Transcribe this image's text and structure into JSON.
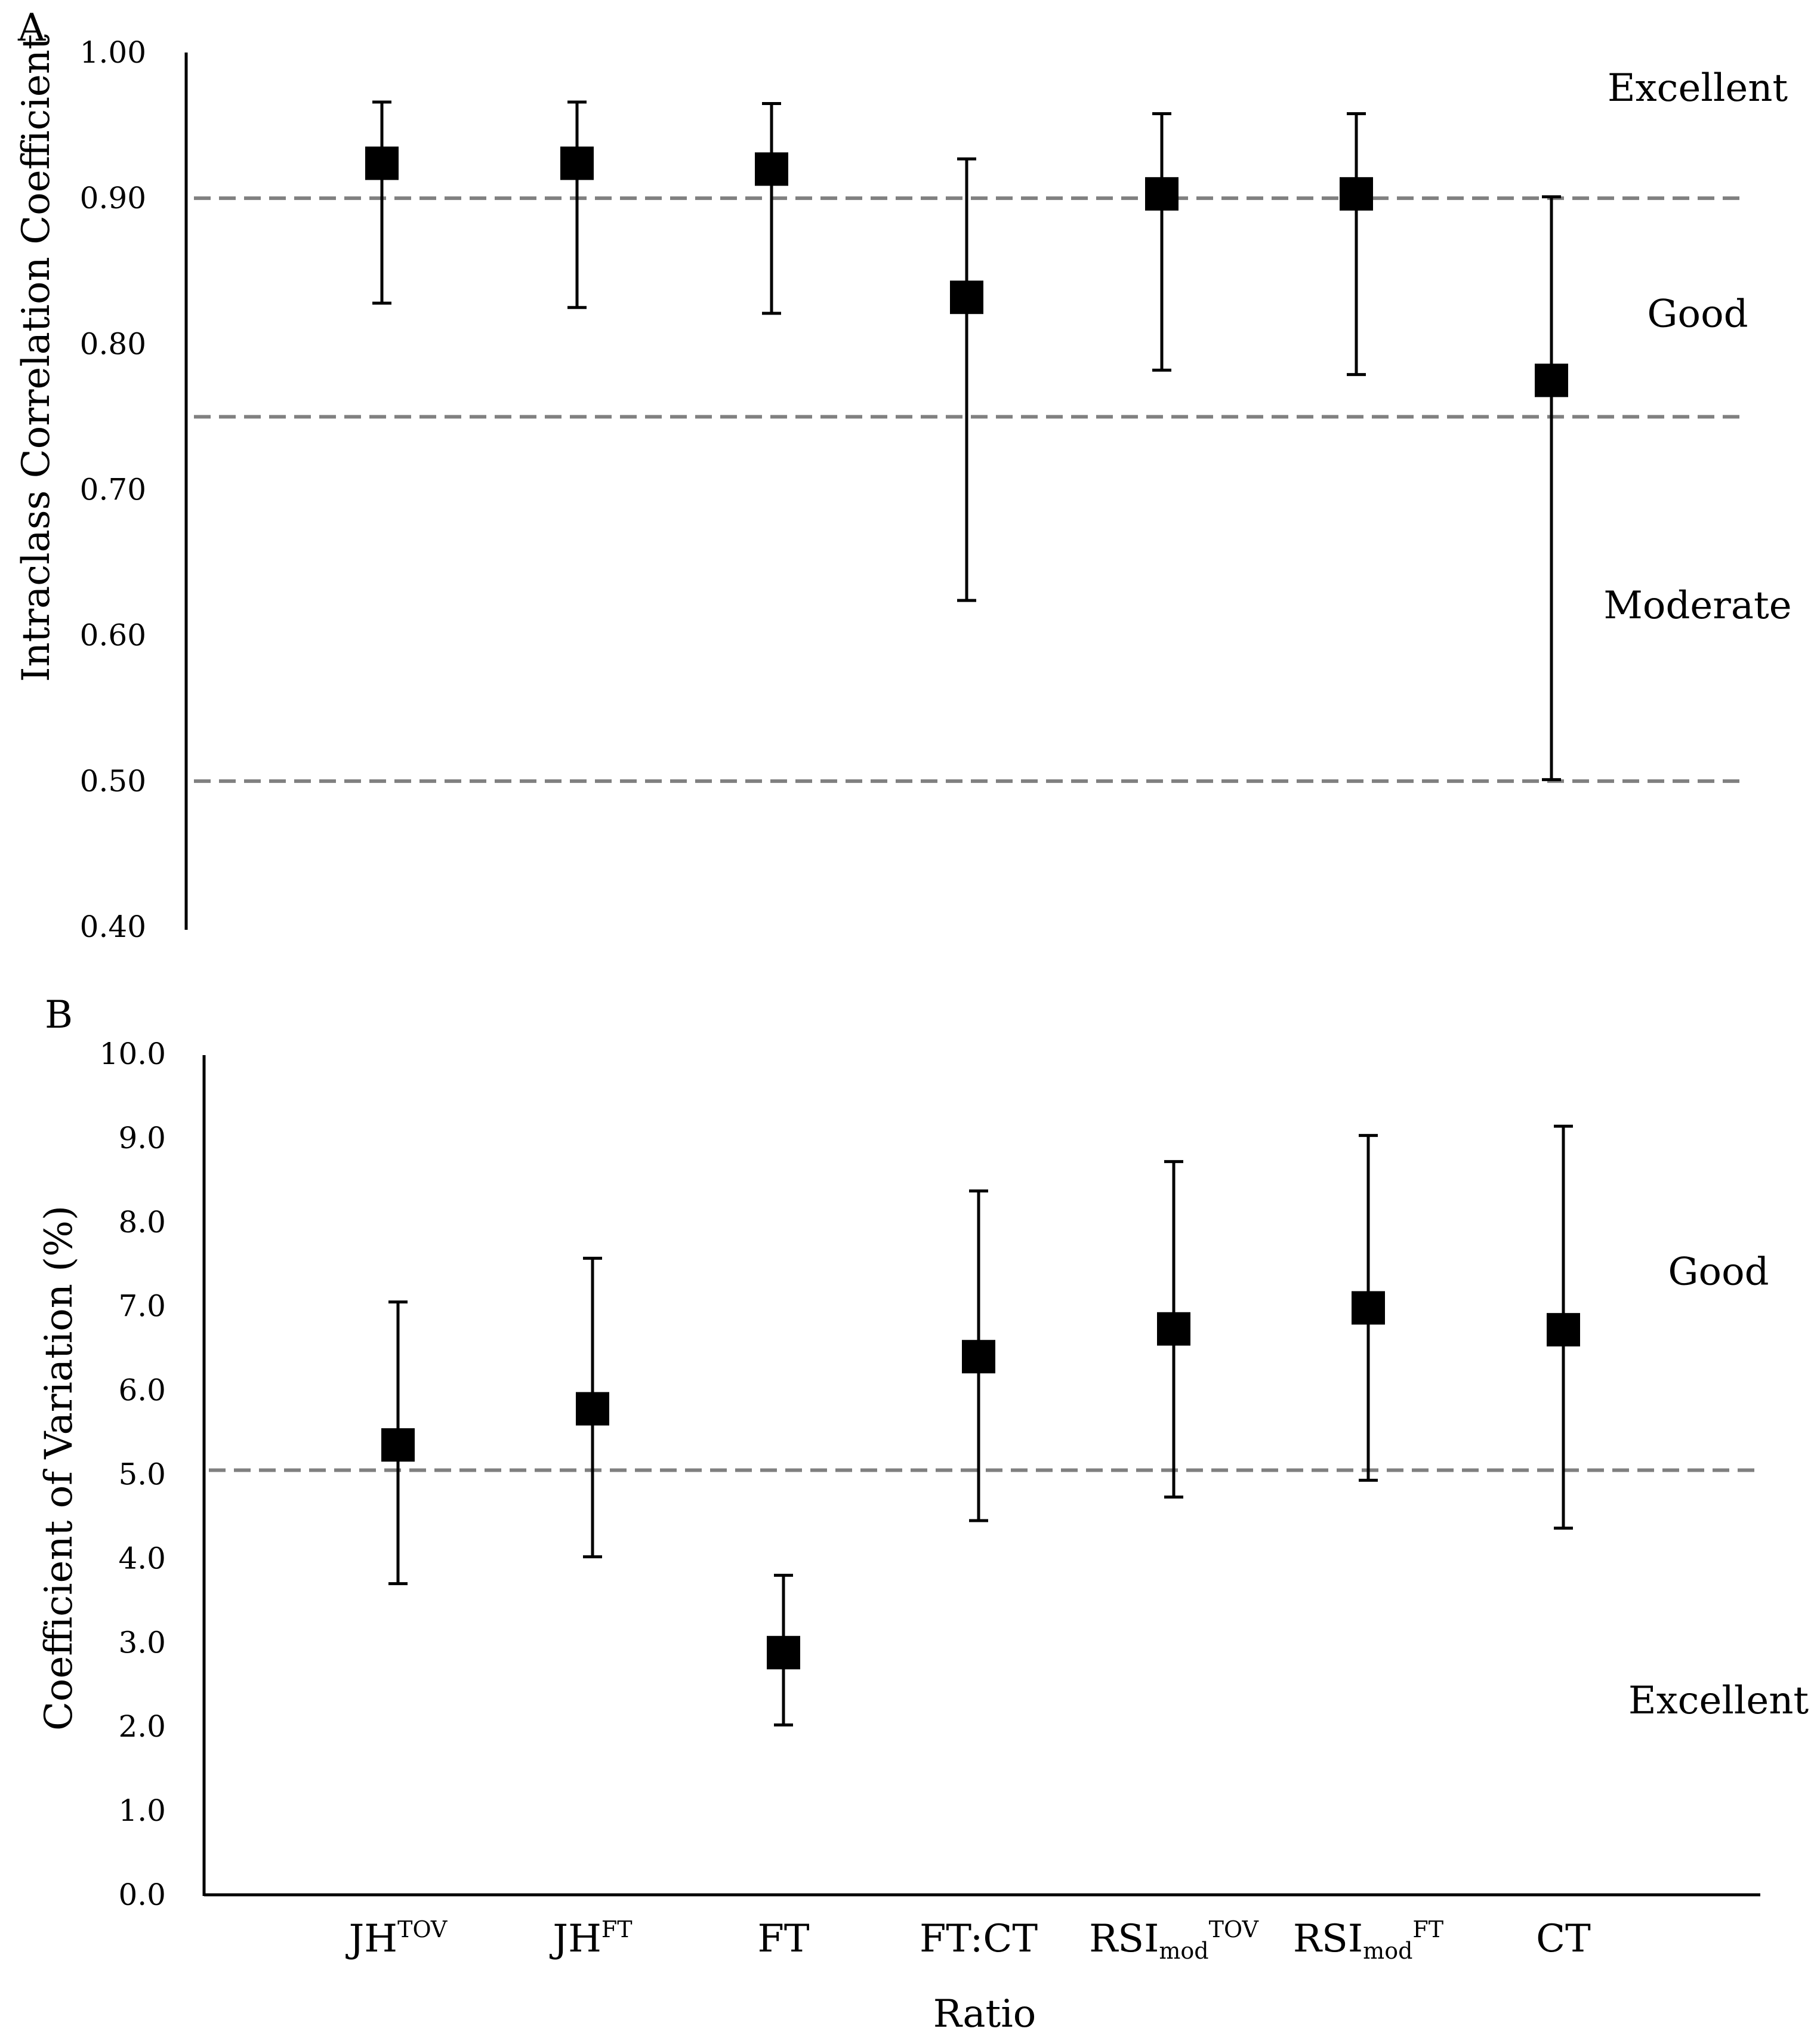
{
  "chart_data": [
    {
      "panel": "A",
      "type": "scatter",
      "style": "point estimate with error bars",
      "ylabel": "Intraclass Correlation Coefficient",
      "ylim": [
        0.4,
        1.0
      ],
      "yticks": [
        "0.40",
        "0.50",
        "0.60",
        "0.70",
        "0.80",
        "0.90",
        "1.00"
      ],
      "thresholds": [
        0.5,
        0.75,
        0.9
      ],
      "zones": [
        {
          "label": "Excellent",
          "y": 0.975
        },
        {
          "label": "Good",
          "y": 0.82
        },
        {
          "label": "Moderate",
          "y": 0.62
        }
      ],
      "points": [
        {
          "x": 1,
          "value": 0.924,
          "lower": 0.828,
          "upper": 0.966
        },
        {
          "x": 2,
          "value": 0.924,
          "lower": 0.825,
          "upper": 0.966
        },
        {
          "x": 3,
          "value": 0.92,
          "lower": 0.821,
          "upper": 0.965
        },
        {
          "x": 4,
          "value": 0.832,
          "lower": 0.624,
          "upper": 0.927
        },
        {
          "x": 5,
          "value": 0.903,
          "lower": 0.782,
          "upper": 0.958
        },
        {
          "x": 6,
          "value": 0.903,
          "lower": 0.779,
          "upper": 0.958
        },
        {
          "x": 7,
          "value": 0.775,
          "lower": 0.501,
          "upper": 0.901
        }
      ]
    },
    {
      "panel": "B",
      "type": "scatter",
      "style": "point estimate with error bars",
      "ylabel": "Coefficient of Variation (%)",
      "xlabel": "Ratio",
      "ylim": [
        0.0,
        10.0
      ],
      "yticks": [
        "0.0",
        "1.0",
        "2.0",
        "3.0",
        "4.0",
        "5.0",
        "6.0",
        "7.0",
        "8.0",
        "9.0",
        "10.0"
      ],
      "thresholds": [
        5.05
      ],
      "zones": [
        {
          "label": "Good",
          "y": 7.4
        },
        {
          "label": "Excellent",
          "y": 2.3
        }
      ],
      "categories": [
        {
          "base": "JH",
          "sub": "",
          "sup": "TOV"
        },
        {
          "base": "JH",
          "sub": "",
          "sup": "FT"
        },
        {
          "base": "FT",
          "sub": "",
          "sup": ""
        },
        {
          "base": "FT:CT",
          "sub": "",
          "sup": ""
        },
        {
          "base": "RSI",
          "sub": "mod",
          "sup": "TOV"
        },
        {
          "base": "RSI",
          "sub": "mod",
          "sup": "FT"
        },
        {
          "base": "CT",
          "sub": "",
          "sup": ""
        }
      ],
      "points": [
        {
          "x": 1,
          "value": 5.35,
          "lower": 3.7,
          "upper": 7.05
        },
        {
          "x": 2,
          "value": 5.78,
          "lower": 4.02,
          "upper": 7.57
        },
        {
          "x": 3,
          "value": 2.88,
          "lower": 2.02,
          "upper": 3.8
        },
        {
          "x": 4,
          "value": 6.4,
          "lower": 4.45,
          "upper": 8.37
        },
        {
          "x": 5,
          "value": 6.73,
          "lower": 4.73,
          "upper": 8.72
        },
        {
          "x": 6,
          "value": 6.98,
          "lower": 4.93,
          "upper": 9.03
        },
        {
          "x": 7,
          "value": 6.72,
          "lower": 4.36,
          "upper": 9.14
        }
      ]
    }
  ]
}
